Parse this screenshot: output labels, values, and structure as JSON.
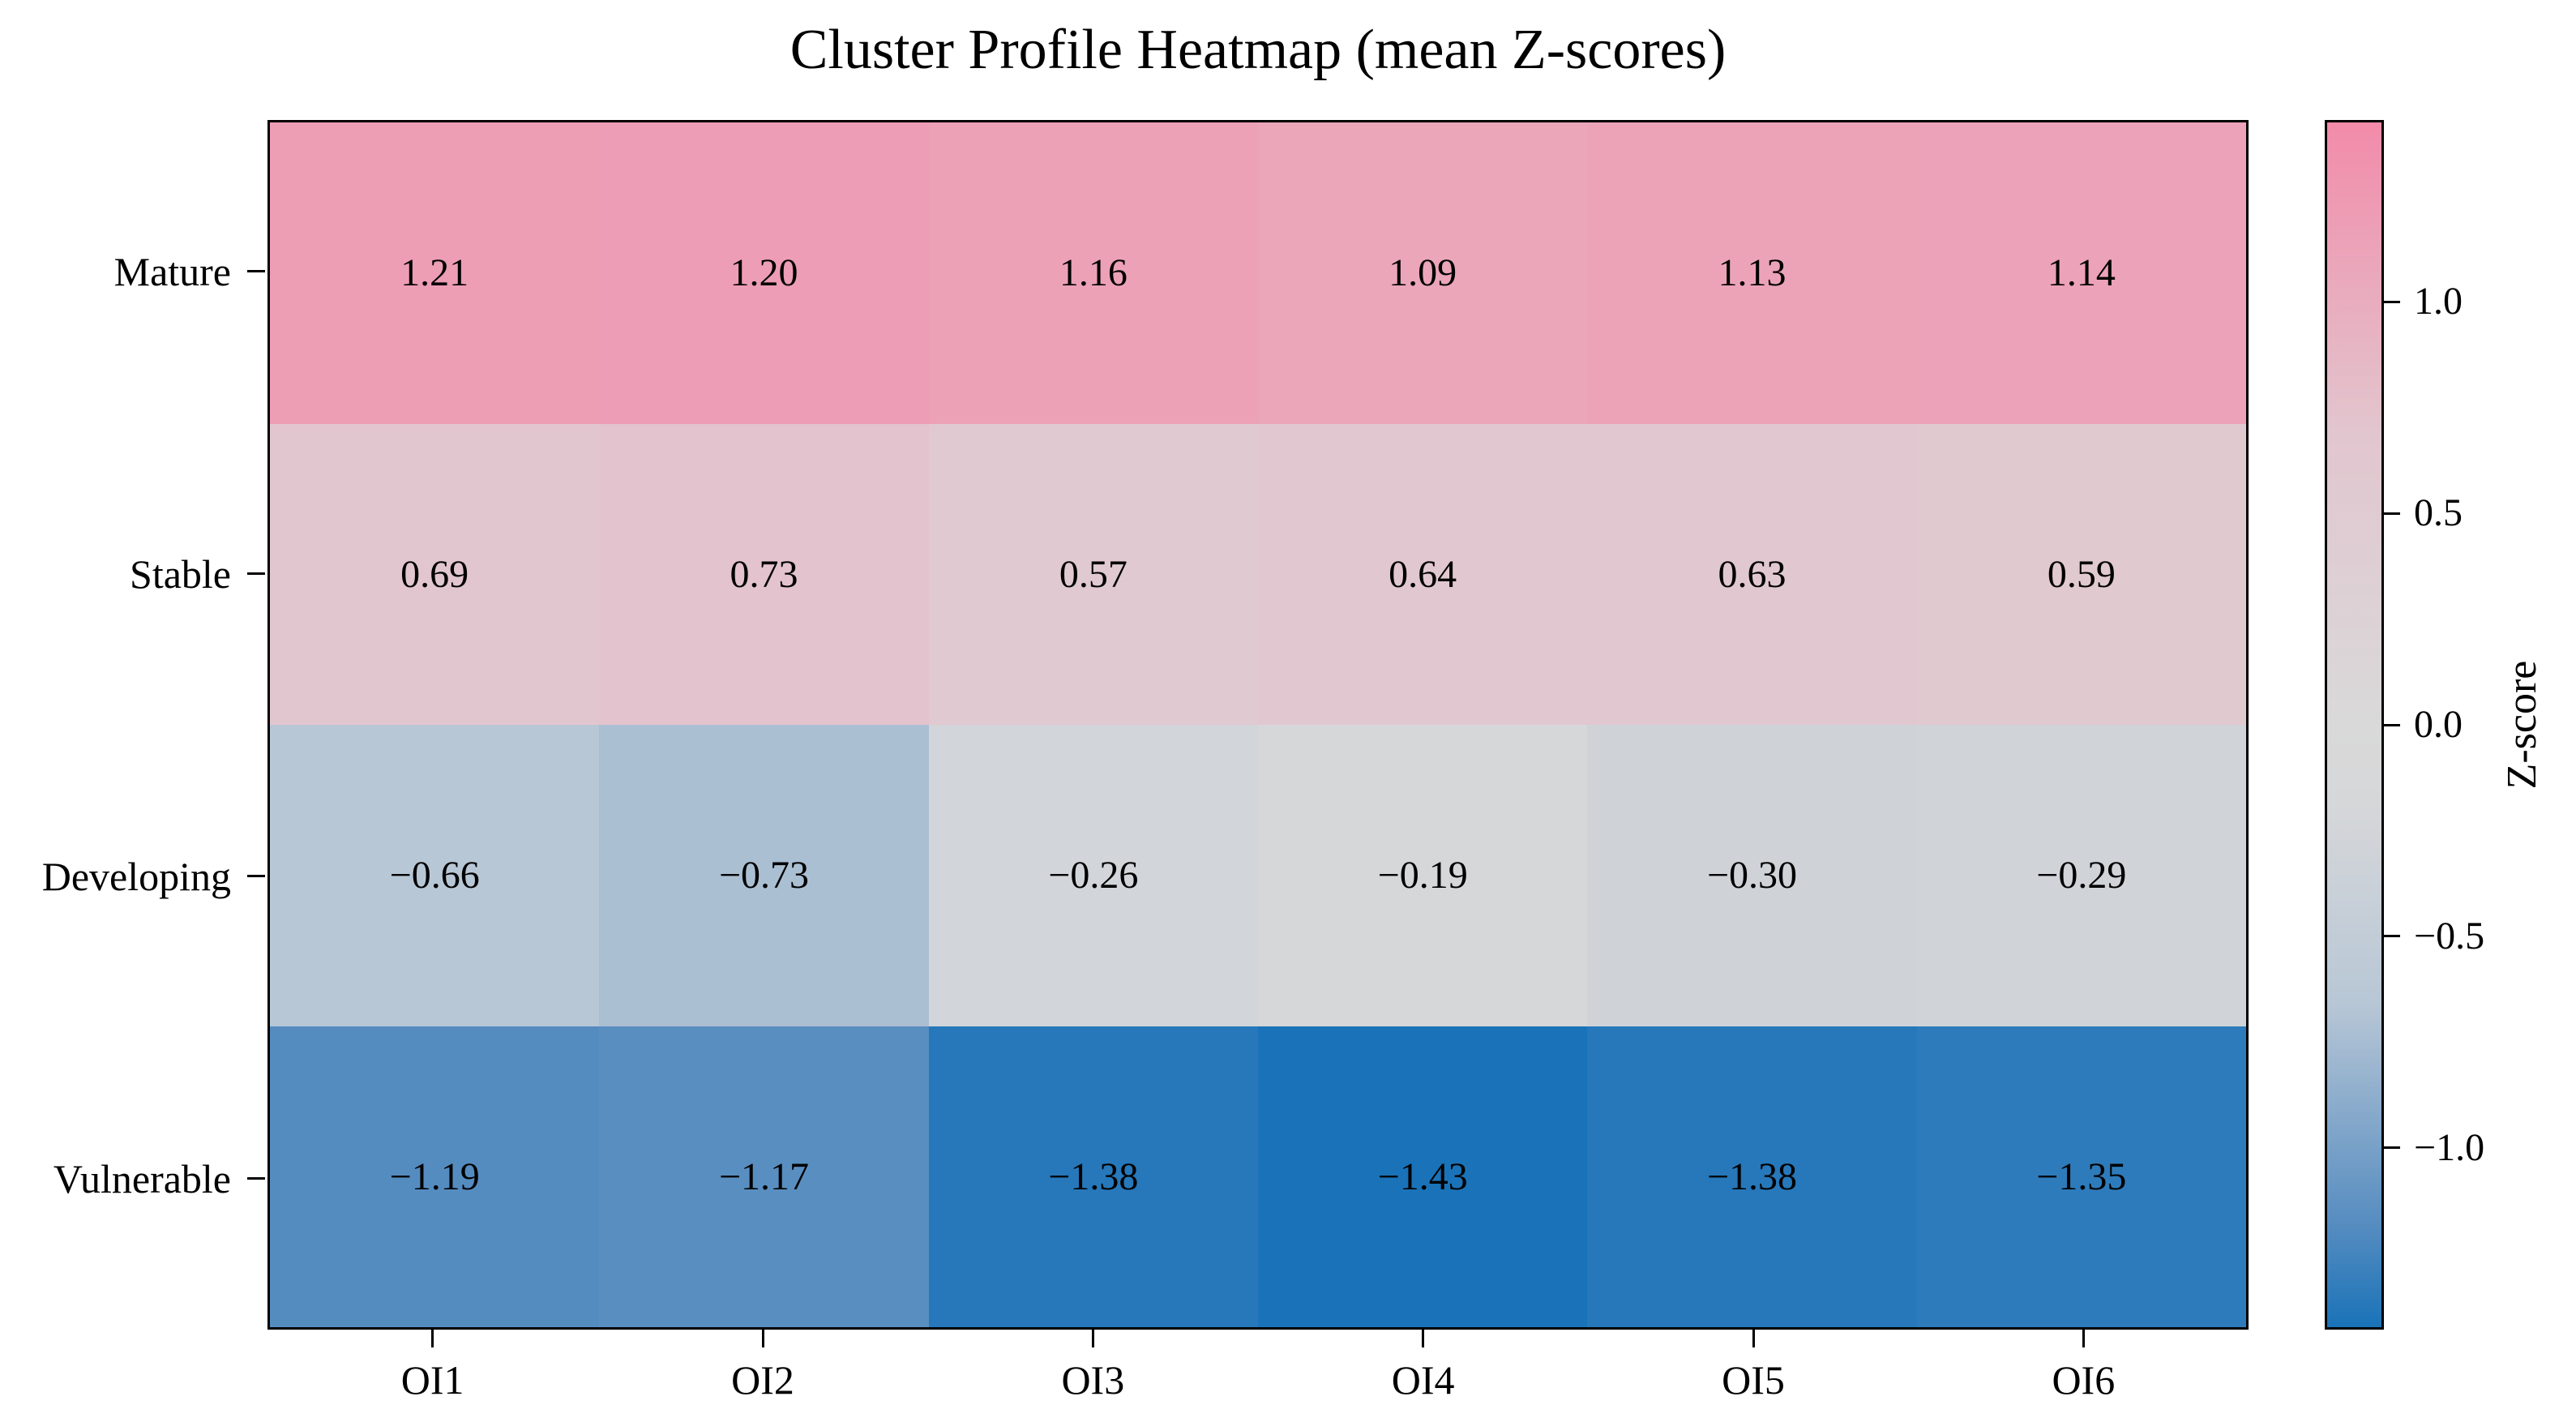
{
  "chart_data": {
    "type": "heatmap",
    "title": "Cluster Profile Heatmap (mean Z-scores)",
    "rows": [
      "Mature",
      "Stable",
      "Developing",
      "Vulnerable"
    ],
    "columns": [
      "OI1",
      "OI2",
      "OI3",
      "OI4",
      "OI5",
      "OI6"
    ],
    "values": [
      [
        1.21,
        1.2,
        1.16,
        1.09,
        1.13,
        1.14
      ],
      [
        0.69,
        0.73,
        0.57,
        0.64,
        0.63,
        0.59
      ],
      [
        -0.66,
        -0.73,
        -0.26,
        -0.19,
        -0.3,
        -0.29
      ],
      [
        -1.19,
        -1.17,
        -1.38,
        -1.43,
        -1.38,
        -1.35
      ]
    ],
    "value_decimals": 2,
    "grid": false,
    "colorbar": {
      "label": "Z-score",
      "ticks": [
        1.0,
        0.5,
        0.0,
        -0.5,
        -1.0
      ],
      "vmin": -1.43,
      "vmax": 1.43,
      "position": "right"
    },
    "colormap_stops": [
      {
        "v": 1.43,
        "color": "#f28ba9"
      },
      {
        "v": 0.69,
        "color": "#e2c6cf"
      },
      {
        "v": 0.0,
        "color": "#d9d9d9"
      },
      {
        "v": -0.19,
        "color": "#d6d7d9"
      },
      {
        "v": -0.66,
        "color": "#b8c7d6"
      },
      {
        "v": -1.19,
        "color": "#558cc0"
      },
      {
        "v": -1.43,
        "color": "#1a73b8"
      }
    ]
  }
}
